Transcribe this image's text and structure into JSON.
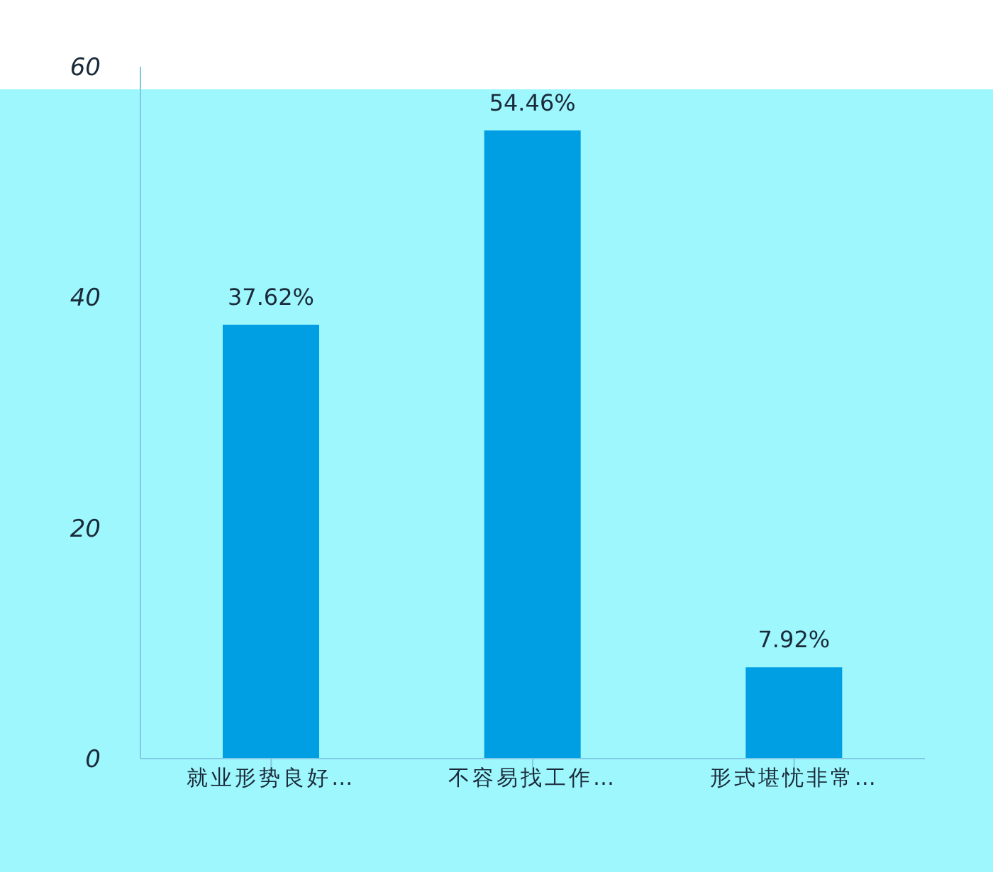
{
  "chart_data": {
    "type": "bar",
    "categories": [
      "就业形势良好…",
      "不容易找工作…",
      "形式堪忧非常…"
    ],
    "values": [
      37.62,
      54.46,
      7.92
    ],
    "color": "#009fe3",
    "value_labels": [
      "37.62%",
      "54.46%",
      "7.92%"
    ],
    "ylim": [
      0,
      60
    ],
    "yticks": [
      0,
      20,
      40,
      60
    ],
    "grid": false,
    "legend": false
  }
}
